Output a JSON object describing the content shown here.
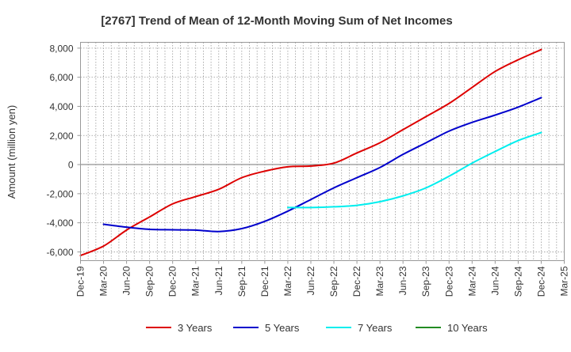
{
  "chart_data": {
    "type": "line",
    "title": "[2767]  Trend of Mean of 12-Month Moving Sum of Net Incomes",
    "ylabel": "Amount (million yen)",
    "xlabel": "",
    "ylim": [
      -6600,
      8400
    ],
    "yticks": [
      8000,
      6000,
      4000,
      2000,
      0,
      -2000,
      -4000,
      -6000
    ],
    "ytick_labels": [
      "8,000",
      "6,000",
      "4,000",
      "2,000",
      "0",
      "-2,000",
      "-4,000",
      "-6,000"
    ],
    "xticks": [
      "Dec-19",
      "Mar-20",
      "Jun-20",
      "Sep-20",
      "Dec-20",
      "Mar-21",
      "Jun-21",
      "Sep-21",
      "Dec-21",
      "Mar-22",
      "Jun-22",
      "Sep-22",
      "Dec-22",
      "Mar-23",
      "Jun-23",
      "Sep-23",
      "Dec-23",
      "Mar-24",
      "Jun-24",
      "Sep-24",
      "Dec-24",
      "Mar-25"
    ],
    "grid": true,
    "legend_position": "bottom",
    "series": [
      {
        "name": "3 Years",
        "color": "#dd0000",
        "x": [
          "Dec-19",
          "Mar-20",
          "Jun-20",
          "Sep-20",
          "Dec-20",
          "Mar-21",
          "Jun-21",
          "Sep-21",
          "Dec-21",
          "Mar-22",
          "Jun-22",
          "Sep-22",
          "Dec-22",
          "Mar-23",
          "Jun-23",
          "Sep-23",
          "Dec-23",
          "Mar-24",
          "Jun-24",
          "Sep-24",
          "Dec-24"
        ],
        "values": [
          -6250,
          -5600,
          -4500,
          -3600,
          -2700,
          -2200,
          -1700,
          -900,
          -450,
          -150,
          -100,
          100,
          800,
          1500,
          2400,
          3300,
          4200,
          5300,
          6400,
          7200,
          7900
        ]
      },
      {
        "name": "5 Years",
        "color": "#0000cc",
        "x": [
          "Mar-20",
          "Jun-20",
          "Sep-20",
          "Dec-20",
          "Mar-21",
          "Jun-21",
          "Sep-21",
          "Dec-21",
          "Mar-22",
          "Jun-22",
          "Sep-22",
          "Dec-22",
          "Mar-23",
          "Jun-23",
          "Sep-23",
          "Dec-23",
          "Mar-24",
          "Jun-24",
          "Sep-24",
          "Dec-24"
        ],
        "values": [
          -4100,
          -4300,
          -4450,
          -4480,
          -4500,
          -4600,
          -4400,
          -3900,
          -3200,
          -2400,
          -1600,
          -900,
          -200,
          700,
          1500,
          2300,
          2900,
          3400,
          3950,
          4600
        ]
      },
      {
        "name": "7 Years",
        "color": "#00eeee",
        "x": [
          "Mar-22",
          "Jun-22",
          "Sep-22",
          "Dec-22",
          "Mar-23",
          "Jun-23",
          "Sep-23",
          "Dec-23",
          "Mar-24",
          "Jun-24",
          "Sep-24",
          "Dec-24"
        ],
        "values": [
          -2950,
          -2950,
          -2900,
          -2800,
          -2550,
          -2150,
          -1600,
          -800,
          100,
          900,
          1650,
          2200
        ]
      },
      {
        "name": "10 Years",
        "color": "#228b22",
        "x": [],
        "values": []
      }
    ]
  }
}
